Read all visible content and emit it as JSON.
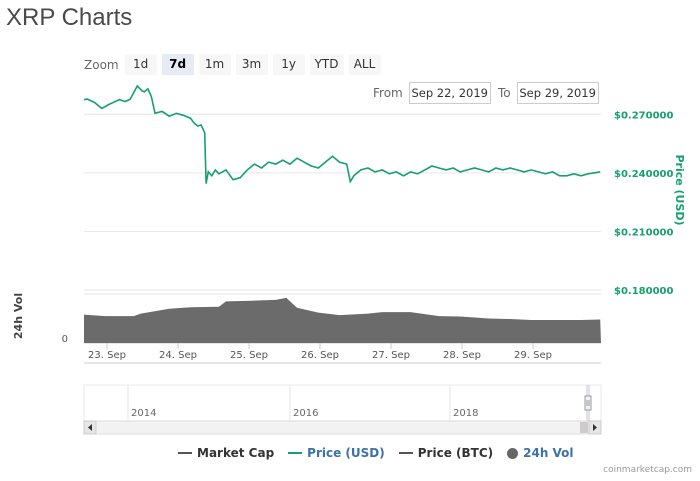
{
  "title": "XRP Charts",
  "zoom": {
    "label": "Zoom",
    "buttons": [
      "1d",
      "7d",
      "1m",
      "3m",
      "1y",
      "YTD",
      "ALL"
    ],
    "active": "7d"
  },
  "range": {
    "from_label": "From",
    "from_value": "Sep 22, 2019",
    "to_label": "To",
    "to_value": "Sep 29, 2019"
  },
  "legend": {
    "market_cap": "Market Cap",
    "price_usd": "Price (USD)",
    "price_btc": "Price (BTC)",
    "vol_24h": "24h Vol"
  },
  "credits": "coinmarketcap.com",
  "colors": {
    "price_usd": "#16a06e",
    "volume": "#6b6b6b",
    "market_cap": "#555555",
    "price_btc": "#555555",
    "legend_link": "#3c72a8"
  },
  "chart_data": {
    "type": "line",
    "price_axis": {
      "label": "Price (USD)",
      "ticks": [
        0.27,
        0.24,
        0.21,
        0.18
      ],
      "tick_labels": [
        "$0.270000",
        "$0.240000",
        "$0.210000",
        "$0.180000"
      ],
      "range": [
        0.18,
        0.285
      ]
    },
    "volume_axis": {
      "label": "24h Vol",
      "ticks": [
        0
      ],
      "tick_labels": [
        "0"
      ]
    },
    "x_tick_labels": [
      "23. Sep",
      "24. Sep",
      "25. Sep",
      "26. Sep",
      "27. Sep",
      "28. Sep",
      "29. Sep"
    ],
    "series": [
      {
        "name": "Price (USD)",
        "x_days": [
          0,
          0.05,
          0.15,
          0.25,
          0.35,
          0.42,
          0.5,
          0.58,
          0.65,
          0.75,
          0.82,
          0.85,
          0.9,
          0.95,
          1.0,
          1.1,
          1.2,
          1.3,
          1.4,
          1.5,
          1.55,
          1.6,
          1.65,
          1.7,
          1.72,
          1.75,
          1.8,
          1.85,
          1.9,
          2.0,
          2.1,
          2.2,
          2.3,
          2.4,
          2.5,
          2.6,
          2.7,
          2.8,
          2.9,
          3.0,
          3.1,
          3.2,
          3.3,
          3.4,
          3.5,
          3.6,
          3.7,
          3.75,
          3.8,
          3.9,
          4.0,
          4.1,
          4.2,
          4.3,
          4.4,
          4.5,
          4.6,
          4.7,
          4.8,
          4.9,
          5.0,
          5.1,
          5.2,
          5.3,
          5.4,
          5.5,
          5.6,
          5.7,
          5.8,
          5.9,
          6.0,
          6.1,
          6.2,
          6.3,
          6.4,
          6.5,
          6.6,
          6.7,
          6.8,
          6.9,
          7.0,
          7.1,
          7.27
        ],
        "values": [
          0.2775,
          0.2778,
          0.276,
          0.273,
          0.275,
          0.2762,
          0.2775,
          0.2765,
          0.2778,
          0.2845,
          0.282,
          0.2815,
          0.283,
          0.279,
          0.2705,
          0.2715,
          0.269,
          0.2705,
          0.2695,
          0.268,
          0.2655,
          0.264,
          0.2645,
          0.2605,
          0.2345,
          0.2405,
          0.2385,
          0.2415,
          0.2395,
          0.2415,
          0.2365,
          0.2375,
          0.2415,
          0.2445,
          0.2425,
          0.2455,
          0.2445,
          0.2465,
          0.2445,
          0.2475,
          0.2455,
          0.2435,
          0.2425,
          0.2455,
          0.2485,
          0.2455,
          0.2445,
          0.2355,
          0.2385,
          0.2415,
          0.2425,
          0.2405,
          0.2415,
          0.2395,
          0.2405,
          0.2385,
          0.2405,
          0.2395,
          0.2415,
          0.2435,
          0.2425,
          0.2415,
          0.2425,
          0.2405,
          0.2415,
          0.2425,
          0.2415,
          0.2405,
          0.2425,
          0.2415,
          0.2425,
          0.2415,
          0.2405,
          0.2415,
          0.2405,
          0.2395,
          0.2405,
          0.2385,
          0.2385,
          0.2395,
          0.2385,
          0.2395,
          0.2405
        ]
      },
      {
        "name": "24h Vol",
        "x_days": [
          0,
          0.3,
          0.7,
          0.8,
          1.2,
          1.5,
          1.9,
          2.0,
          2.3,
          2.7,
          2.85,
          3.0,
          3.3,
          3.6,
          4.0,
          4.2,
          4.6,
          5.0,
          5.3,
          5.7,
          6.0,
          6.3,
          6.7,
          7.0,
          7.27
        ],
        "values": [
          0.58,
          0.55,
          0.55,
          0.6,
          0.7,
          0.73,
          0.74,
          0.85,
          0.86,
          0.88,
          0.92,
          0.72,
          0.62,
          0.57,
          0.6,
          0.63,
          0.63,
          0.55,
          0.54,
          0.5,
          0.49,
          0.47,
          0.47,
          0.47,
          0.48
        ]
      }
    ],
    "navigator": {
      "tick_labels": [
        "2014",
        "2016",
        "2018"
      ]
    }
  }
}
